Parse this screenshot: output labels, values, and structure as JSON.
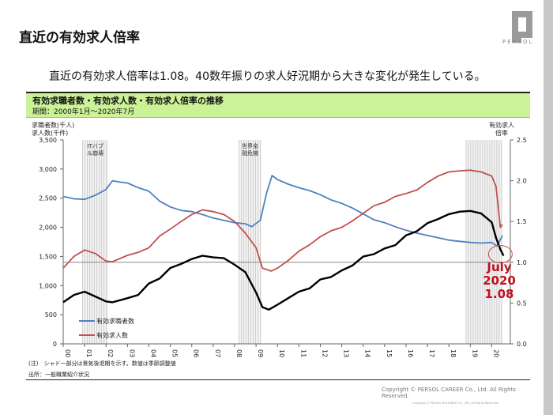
{
  "slide": {
    "title": "直近の有効求人倍率",
    "lead": "直近の有効求人倍率は1.08。40数年振りの求人好況期から大きな変化が発生している。",
    "logo_text": "PERSOL",
    "banner_title": "有効求職者数・有効求人数・有効求人倍率の推移",
    "banner_sub": "期間：2000年1月～2020年7月",
    "note1": "(注)　シャドー部分は景気後退期を示す。数値は季節調整値",
    "note2": "出所：一般職業紹介状況",
    "copyright": "Copyright © PERSOL CAREER Co., Ltd. All Rights Reserved.",
    "copyright_small": "Copyright © PERSOL HOLDINGS CO., LTD. All Rights Reserved.",
    "colors": {
      "seekers": "#4f81bd",
      "openings": "#c0504d",
      "ratio": "#000000",
      "accent": "#c0101e",
      "banner": "#ccf297"
    }
  },
  "chart_data": {
    "type": "line",
    "title": "有効求職者数・有効求人数・有効求人倍率の推移",
    "subtitle": "期間：2000年1月～2020年7月",
    "ylabel_left": [
      "求職者数(千人)",
      "求人数(千件)"
    ],
    "ylabel_right": [
      "有効求人",
      "倍率"
    ],
    "ylim_left": [
      0,
      3500
    ],
    "ylim_right": [
      0,
      2.5
    ],
    "yticks_left": [
      "0",
      "500",
      "1,000",
      "1,500",
      "2,000",
      "2,500",
      "3,000",
      "3,500"
    ],
    "yticks_right": [
      "0.0",
      "0.5",
      "1.0",
      "1.5",
      "2.0",
      "2.5"
    ],
    "x_tick_labels": [
      "00",
      "01",
      "02",
      "03",
      "04",
      "05",
      "06",
      "07",
      "08",
      "09",
      "10",
      "11",
      "12",
      "13",
      "14",
      "15",
      "16",
      "17",
      "18",
      "19",
      "20"
    ],
    "x_range": [
      2000.0,
      2020.5
    ],
    "reference_line_ratio": 1.0,
    "recessions": [
      {
        "label": "ITバブル崩壊",
        "start": 2000.9,
        "end": 2002.1
      },
      {
        "label": "世界金融危機",
        "start": 2008.2,
        "end": 2009.25
      },
      {
        "label": "",
        "start": 2018.8,
        "end": 2020.5
      }
    ],
    "legend": [
      "有効求職者数",
      "有効求人数"
    ],
    "legend_placement": "bottom-left",
    "annotation": [
      "July",
      "2020",
      "1.08"
    ],
    "series": [
      {
        "name": "有効求職者数",
        "axis": "left",
        "color": "#4f81bd",
        "x": [
          2000.0,
          2000.5,
          2001.0,
          2001.5,
          2002.0,
          2002.3,
          2002.6,
          2003.0,
          2003.5,
          2004.0,
          2004.5,
          2005.0,
          2005.5,
          2006.0,
          2006.5,
          2007.0,
          2007.5,
          2008.0,
          2008.5,
          2008.8,
          2009.2,
          2009.5,
          2009.75,
          2010.0,
          2010.5,
          2011.0,
          2011.5,
          2012.0,
          2012.5,
          2013.0,
          2013.5,
          2014.0,
          2014.5,
          2015.0,
          2015.5,
          2016.0,
          2016.5,
          2017.0,
          2017.5,
          2018.0,
          2018.5,
          2019.0,
          2019.5,
          2020.0,
          2020.25,
          2020.5
        ],
        "values": [
          2530,
          2490,
          2480,
          2550,
          2650,
          2800,
          2780,
          2760,
          2680,
          2620,
          2450,
          2350,
          2290,
          2270,
          2220,
          2160,
          2120,
          2080,
          2060,
          2010,
          2120,
          2600,
          2890,
          2820,
          2740,
          2680,
          2630,
          2560,
          2470,
          2410,
          2330,
          2230,
          2130,
          2080,
          2010,
          1950,
          1900,
          1860,
          1820,
          1780,
          1760,
          1740,
          1730,
          1740,
          1680,
          1860
        ]
      },
      {
        "name": "有効求人数",
        "axis": "left",
        "color": "#c0504d",
        "x": [
          2000.0,
          2000.5,
          2001.0,
          2001.5,
          2002.0,
          2002.3,
          2003.0,
          2003.5,
          2004.0,
          2004.5,
          2005.0,
          2005.5,
          2006.0,
          2006.5,
          2007.0,
          2007.5,
          2008.0,
          2008.5,
          2009.0,
          2009.3,
          2009.7,
          2010.0,
          2010.5,
          2011.0,
          2011.5,
          2012.0,
          2012.5,
          2013.0,
          2013.5,
          2014.0,
          2014.5,
          2015.0,
          2015.5,
          2016.0,
          2016.5,
          2017.0,
          2017.5,
          2018.0,
          2018.5,
          2019.0,
          2019.5,
          2020.0,
          2020.2,
          2020.4,
          2020.5
        ],
        "values": [
          1300,
          1500,
          1610,
          1550,
          1420,
          1410,
          1520,
          1570,
          1650,
          1850,
          1970,
          2100,
          2220,
          2300,
          2270,
          2220,
          2100,
          1900,
          1650,
          1300,
          1250,
          1300,
          1430,
          1590,
          1700,
          1840,
          1940,
          2000,
          2110,
          2240,
          2370,
          2430,
          2530,
          2580,
          2640,
          2770,
          2880,
          2950,
          2970,
          2980,
          2950,
          2880,
          2700,
          2000,
          2050
        ]
      },
      {
        "name": "有効求人倍率",
        "axis": "right",
        "color": "#000000",
        "x": [
          2000.0,
          2000.5,
          2001.0,
          2001.5,
          2002.0,
          2002.3,
          2003.0,
          2003.5,
          2004.0,
          2004.5,
          2005.0,
          2005.5,
          2006.0,
          2006.5,
          2007.0,
          2007.5,
          2008.0,
          2008.5,
          2009.0,
          2009.3,
          2009.6,
          2010.0,
          2010.5,
          2011.0,
          2011.5,
          2012.0,
          2012.5,
          2013.0,
          2013.5,
          2014.0,
          2014.5,
          2015.0,
          2015.5,
          2016.0,
          2016.5,
          2017.0,
          2017.5,
          2018.0,
          2018.5,
          2019.0,
          2019.5,
          2020.0,
          2020.2,
          2020.4,
          2020.55
        ],
        "values": [
          0.51,
          0.6,
          0.64,
          0.58,
          0.52,
          0.51,
          0.56,
          0.6,
          0.74,
          0.8,
          0.93,
          0.98,
          1.04,
          1.08,
          1.06,
          1.05,
          0.97,
          0.88,
          0.63,
          0.45,
          0.42,
          0.48,
          0.56,
          0.64,
          0.68,
          0.79,
          0.82,
          0.9,
          0.96,
          1.07,
          1.1,
          1.17,
          1.21,
          1.33,
          1.38,
          1.48,
          1.53,
          1.59,
          1.62,
          1.63,
          1.6,
          1.49,
          1.3,
          1.16,
          1.08
        ]
      }
    ]
  }
}
